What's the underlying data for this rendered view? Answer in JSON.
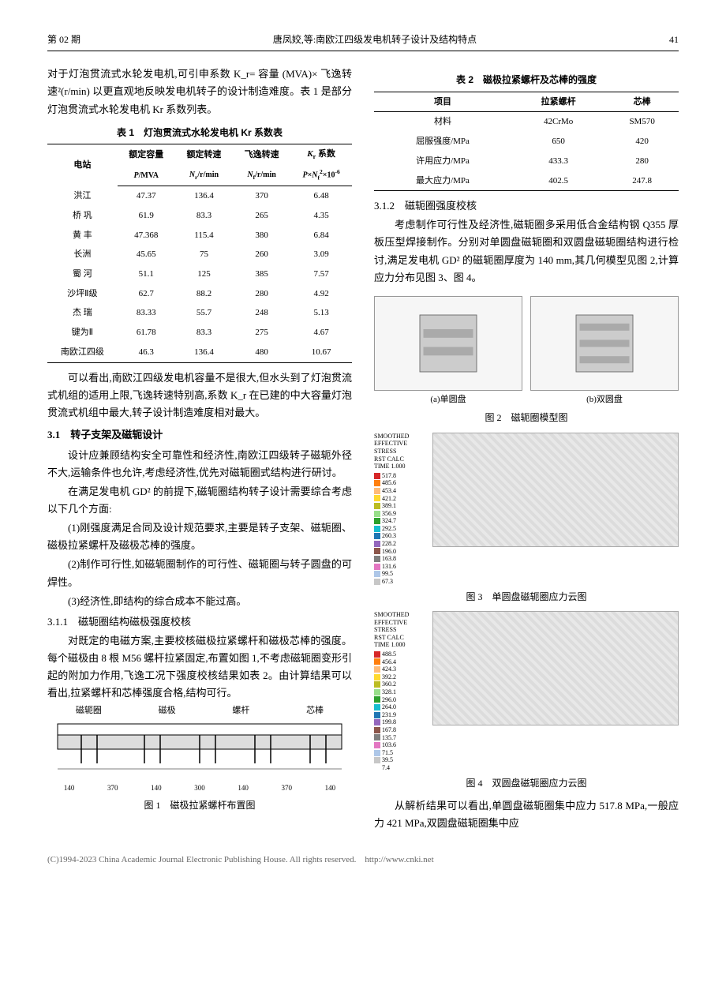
{
  "header": {
    "issue": "第 02 期",
    "title": "唐凤姣,等:南欧江四级发电机转子设计及结构特点",
    "page": "41"
  },
  "left": {
    "intro": "对于灯泡贯流式水轮发电机,可引申系数 K_r= 容量 (MVA)× 飞逸转速²(r/min) 以更直观地反映发电机转子的设计制造难度。表 1 是部分灯泡贯流式水轮发电机 Kr 系数列表。",
    "table1_caption": "表 1　灯泡贯流式水轮发电机 Kr 系数表",
    "table1": {
      "headers": [
        "电站",
        "额定容量 P/MVA",
        "额定转速 N_r/r/min",
        "飞逸转速 N_f/r/min",
        "K_r 系数 P×N_f²×10⁻⁶"
      ],
      "rows": [
        [
          "洪江",
          "47.37",
          "136.4",
          "370",
          "6.48"
        ],
        [
          "桥 巩",
          "61.9",
          "83.3",
          "265",
          "4.35"
        ],
        [
          "黄 丰",
          "47.368",
          "115.4",
          "380",
          "6.84"
        ],
        [
          "长洲",
          "45.65",
          "75",
          "260",
          "3.09"
        ],
        [
          "蜀 河",
          "51.1",
          "125",
          "385",
          "7.57"
        ],
        [
          "沙坪Ⅱ级",
          "62.7",
          "88.2",
          "280",
          "4.92"
        ],
        [
          "杰 瑞",
          "83.33",
          "55.7",
          "248",
          "5.13"
        ],
        [
          "键为Ⅱ",
          "61.78",
          "83.3",
          "275",
          "4.67"
        ],
        [
          "南欧江四级",
          "46.3",
          "136.4",
          "480",
          "10.67"
        ]
      ]
    },
    "para_after_t1": "可以看出,南欧江四级发电机容量不是很大,但水头到了灯泡贯流式机组的适用上限,飞逸转速特别高,系数 K_r 在已建的中大容量灯泡贯流式机组中最大,转子设计制造难度相对最大。",
    "sec31_title": "3.1　转子支架及磁轭设计",
    "sec31_p1": "设计应兼顾结构安全可靠性和经济性,南欧江四级转子磁轭外径不大,运输条件也允许,考虑经济性,优先对磁轭圈式结构进行研讨。",
    "sec31_p2": "在满足发电机 GD² 的前提下,磁轭圈结构转子设计需要综合考虑以下几个方面:",
    "sec31_p3": "(1)刚强度满足合同及设计规范要求,主要是转子支架、磁轭圈、磁极拉紧螺杆及磁极芯棒的强度。",
    "sec31_p4": "(2)制作可行性,如磁轭圈制作的可行性、磁轭圈与转子圆盘的可焊性。",
    "sec31_p5": "(3)经济性,即结构的综合成本不能过高。",
    "sec311_title": "3.1.1　磁轭圈结构磁极强度校核",
    "sec311_p": "对既定的电磁方案,主要校核磁极拉紧螺杆和磁极芯棒的强度。每个磁极由 8 根 M56 螺杆拉紧固定,布置如图 1,不考虑磁轭圈变形引起的附加力作用,飞逸工况下强度校核结果如表 2。由计算结果可以看出,拉紧螺杆和芯棒强度合格,结构可行。",
    "fig1_labels": [
      "磁轭圈",
      "磁极",
      "螺杆",
      "芯棒"
    ],
    "fig1_dims": [
      "140",
      "370",
      "140",
      "300",
      "140",
      "370",
      "140"
    ],
    "fig1_caption": "图 1　磁极拉紧螺杆布置图"
  },
  "right": {
    "table2_caption": "表 2　磁极拉紧螺杆及芯棒的强度",
    "table2": {
      "headers": [
        "项目",
        "拉紧螺杆",
        "芯棒"
      ],
      "rows": [
        [
          "材料",
          "42CrMo",
          "SM570"
        ],
        [
          "屈服强度/MPa",
          "650",
          "420"
        ],
        [
          "许用应力/MPa",
          "433.3",
          "280"
        ],
        [
          "最大应力/MPa",
          "402.5",
          "247.8"
        ]
      ]
    },
    "sec312_title": "3.1.2　磁轭圈强度校核",
    "sec312_p": "考虑制作可行性及经济性,磁轭圈多采用低合金结构钢 Q355 厚板压型焊接制作。分别对单圆盘磁轭圈和双圆盘磁轭圈结构进行检讨,满足发电机 GD² 的磁轭圈厚度为 140 mm,其几何模型见图 2,计算应力分布见图 3、图 4。",
    "fig2_sub_a": "(a)单圆盘",
    "fig2_sub_b": "(b)双圆盘",
    "fig2_caption": "图 2　磁轭圈模型图",
    "fig3": {
      "header_lines": [
        "SMOOTHED",
        "EFFECTIVE",
        "STRESS",
        "RST CALC",
        "TIME 1.000"
      ],
      "legend_values": [
        "517.8",
        "485.6",
        "453.4",
        "421.2",
        "389.1",
        "356.9",
        "324.7",
        "292.5",
        "260.3",
        "228.2",
        "196.0",
        "163.8",
        "131.6",
        "99.5",
        "67.3"
      ],
      "colors": [
        "#d62728",
        "#ff7f0e",
        "#ffbb78",
        "#ffd92f",
        "#bcbd22",
        "#98df8a",
        "#2ca02c",
        "#17becf",
        "#1f77b4",
        "#9467bd",
        "#8c564b",
        "#7f7f7f",
        "#e377c2",
        "#aec7e8",
        "#c7c7c7"
      ]
    },
    "fig3_caption": "图 3　单圆盘磁轭圈应力云图",
    "fig4": {
      "header_lines": [
        "SMOOTHED",
        "EFFECTIVE",
        "STRESS",
        "RST CALC",
        "TIME 1.000"
      ],
      "legend_values": [
        "488.5",
        "456.4",
        "424.3",
        "392.2",
        "360.2",
        "328.1",
        "296.0",
        "264.0",
        "231.9",
        "199.8",
        "167.8",
        "135.7",
        "103.6",
        "71.5",
        "39.5",
        "7.4"
      ],
      "colors": [
        "#d62728",
        "#ff7f0e",
        "#ffbb78",
        "#ffd92f",
        "#bcbd22",
        "#98df8a",
        "#2ca02c",
        "#17becf",
        "#1f77b4",
        "#9467bd",
        "#8c564b",
        "#7f7f7f",
        "#e377c2",
        "#aec7e8",
        "#c7c7c7",
        "#ffffff"
      ]
    },
    "fig4_caption": "图 4　双圆盘磁轭圈应力云图",
    "closing_p": "从解析结果可以看出,单圆盘磁轭圈集中应力 517.8 MPa,一般应力 421 MPa,双圆盘磁轭圈集中应"
  },
  "footer": {
    "copyright": "(C)1994-2023 China Academic Journal Electronic Publishing House. All rights reserved.",
    "url": "http://www.cnki.net"
  }
}
